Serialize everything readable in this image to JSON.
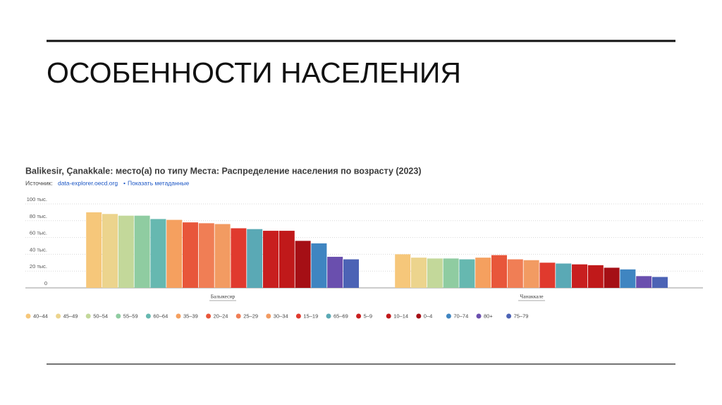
{
  "header": {
    "title": "ОСОБЕННОСТИ НАСЕЛЕНИЯ"
  },
  "chart_data": {
    "type": "bar",
    "title": "Balikesir, Çanakkale: место(а) по типу Места: Распределение населения по возрасту (2023)",
    "source": {
      "label": "Источник:",
      "link": "data-explorer.oecd.org",
      "separator": "•",
      "metadata": "Показать метаданные"
    },
    "categories": [
      "Балыкесир",
      "Чанаккале"
    ],
    "ylim": [
      0,
      100
    ],
    "yticks": [
      0,
      {
        "value": 20,
        "label": "20 тыс."
      },
      {
        "value": 40,
        "label": "40 тыс."
      },
      {
        "value": 60,
        "label": "60 тыс."
      },
      {
        "value": 80,
        "label": "80 тыс."
      },
      {
        "value": 100,
        "label": "100 тыс."
      }
    ],
    "grid": true,
    "legend": "bottom",
    "series": [
      {
        "name": "40–44",
        "color": "#f6c77a",
        "values": [
          90,
          40
        ]
      },
      {
        "name": "45–49",
        "color": "#ecd48d",
        "values": [
          88,
          36
        ]
      },
      {
        "name": "50–54",
        "color": "#c3d89a",
        "values": [
          86,
          35
        ]
      },
      {
        "name": "55–59",
        "color": "#8fcca1",
        "values": [
          86,
          35
        ]
      },
      {
        "name": "60–64",
        "color": "#66b8b0",
        "values": [
          82,
          34
        ]
      },
      {
        "name": "35–39",
        "color": "#f5a05f",
        "values": [
          81,
          36
        ]
      },
      {
        "name": "20–24",
        "color": "#e8563a",
        "values": [
          78,
          39
        ]
      },
      {
        "name": "25–29",
        "color": "#f07e55",
        "values": [
          77,
          34
        ]
      },
      {
        "name": "30–34",
        "color": "#f29b62",
        "values": [
          76,
          33
        ]
      },
      {
        "name": "15–19",
        "color": "#e03a2e",
        "values": [
          71,
          30
        ]
      },
      {
        "name": "65–69",
        "color": "#5aa9b5",
        "values": [
          70,
          29
        ]
      },
      {
        "name": "5–9",
        "color": "#c81f1f",
        "values": [
          68,
          28
        ]
      },
      {
        "name": "10–14",
        "color": "#c0191a",
        "values": [
          68,
          27
        ]
      },
      {
        "name": "0–4",
        "color": "#a50f15",
        "values": [
          56,
          24
        ]
      },
      {
        "name": "70–74",
        "color": "#3f85c1",
        "values": [
          53,
          22
        ]
      },
      {
        "name": "80+",
        "color": "#6a4fae",
        "values": [
          37,
          14
        ]
      },
      {
        "name": "75–79",
        "color": "#4c63b5",
        "values": [
          34,
          13
        ]
      }
    ]
  }
}
